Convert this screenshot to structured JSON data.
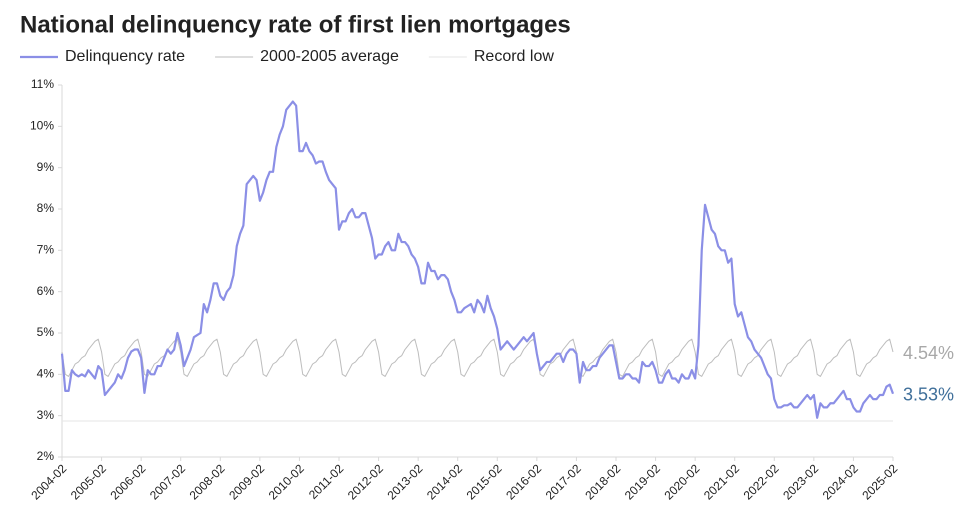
{
  "chart_data": {
    "type": "line",
    "title": "National delinquency rate of first lien mortgages",
    "x": [
      "2004-02",
      null,
      null,
      null,
      null,
      null,
      null,
      null,
      null,
      null,
      null,
      null,
      "2005-02",
      null,
      null,
      null,
      null,
      null,
      null,
      null,
      null,
      null,
      null,
      null,
      "2006-02",
      null,
      null,
      null,
      null,
      null,
      null,
      null,
      null,
      null,
      null,
      null,
      "2007-02",
      null,
      null,
      null,
      null,
      null,
      null,
      null,
      null,
      null,
      null,
      null,
      "2008-02",
      null,
      null,
      null,
      null,
      null,
      null,
      null,
      null,
      null,
      null,
      null,
      "2009-02",
      null,
      null,
      null,
      null,
      null,
      null,
      null,
      null,
      null,
      null,
      null,
      "2010-02",
      null,
      null,
      null,
      null,
      null,
      null,
      null,
      null,
      null,
      null,
      null,
      "2011-02",
      null,
      null,
      null,
      null,
      null,
      null,
      null,
      null,
      null,
      null,
      null,
      "2012-02",
      null,
      null,
      null,
      null,
      null,
      null,
      null,
      null,
      null,
      null,
      null,
      "2013-02",
      null,
      null,
      null,
      null,
      null,
      null,
      null,
      null,
      null,
      null,
      null,
      "2014-02",
      null,
      null,
      null,
      null,
      null,
      null,
      null,
      null,
      null,
      null,
      null,
      "2015-02",
      null,
      null,
      null,
      null,
      null,
      null,
      null,
      null,
      null,
      null,
      null,
      "2016-02",
      null,
      null,
      null,
      null,
      null,
      null,
      null,
      null,
      null,
      null,
      null,
      "2017-02",
      null,
      null,
      null,
      null,
      null,
      null,
      null,
      null,
      null,
      null,
      null,
      "2018-02",
      null,
      null,
      null,
      null,
      null,
      null,
      null,
      null,
      null,
      null,
      null,
      "2019-02",
      null,
      null,
      null,
      null,
      null,
      null,
      null,
      null,
      null,
      null,
      null,
      "2020-02",
      null,
      null,
      null,
      null,
      null,
      null,
      null,
      null,
      null,
      null,
      null,
      "2021-02",
      null,
      null,
      null,
      null,
      null,
      null,
      null,
      null,
      null,
      null,
      null,
      "2022-02",
      null,
      null,
      null,
      null,
      null,
      null,
      null,
      null,
      null,
      null,
      null,
      "2023-02",
      null,
      null,
      null,
      null,
      null,
      null,
      null,
      null,
      null,
      null,
      null,
      "2024-02",
      null,
      null,
      null,
      null,
      null,
      null,
      null,
      null,
      null,
      null,
      null,
      "2025-02"
    ],
    "series": [
      {
        "name": "Delinquency rate",
        "color": "#8b8fe6",
        "width": 2.2,
        "end_label": "3.53%",
        "end_label_color": "#3f6f9a",
        "values": [
          4.5,
          3.6,
          3.6,
          4.1,
          4.0,
          3.95,
          4.0,
          3.95,
          4.1,
          4.0,
          3.9,
          4.2,
          4.1,
          3.5,
          3.6,
          3.7,
          3.8,
          4.0,
          3.9,
          4.1,
          4.4,
          4.55,
          4.6,
          4.6,
          4.4,
          3.55,
          4.1,
          4.0,
          4.0,
          4.2,
          4.2,
          4.4,
          4.6,
          4.5,
          4.6,
          5.0,
          4.7,
          4.2,
          4.4,
          4.6,
          4.9,
          4.95,
          5.0,
          5.7,
          5.5,
          5.8,
          6.2,
          6.2,
          5.9,
          5.8,
          6.0,
          6.1,
          6.4,
          7.1,
          7.4,
          7.6,
          8.6,
          8.7,
          8.8,
          8.7,
          8.2,
          8.4,
          8.7,
          8.9,
          8.9,
          9.5,
          9.8,
          10.0,
          10.4,
          10.5,
          10.6,
          10.5,
          9.4,
          9.4,
          9.6,
          9.4,
          9.3,
          9.1,
          9.15,
          9.15,
          8.9,
          8.7,
          8.6,
          8.5,
          7.5,
          7.7,
          7.7,
          7.9,
          8.0,
          7.8,
          7.8,
          7.9,
          7.9,
          7.6,
          7.3,
          6.8,
          6.9,
          6.9,
          7.1,
          7.2,
          7.0,
          7.0,
          7.4,
          7.2,
          7.2,
          7.1,
          6.9,
          6.8,
          6.6,
          6.2,
          6.2,
          6.7,
          6.5,
          6.5,
          6.3,
          6.4,
          6.4,
          6.3,
          6.0,
          5.8,
          5.5,
          5.5,
          5.6,
          5.65,
          5.7,
          5.5,
          5.8,
          5.7,
          5.5,
          5.9,
          5.6,
          5.4,
          5.1,
          4.6,
          4.7,
          4.8,
          4.7,
          4.6,
          4.7,
          4.8,
          4.9,
          4.8,
          4.9,
          5.0,
          4.5,
          4.1,
          4.2,
          4.3,
          4.3,
          4.4,
          4.5,
          4.5,
          4.3,
          4.5,
          4.6,
          4.6,
          4.5,
          3.8,
          4.3,
          4.1,
          4.1,
          4.2,
          4.2,
          4.4,
          4.5,
          4.6,
          4.7,
          4.7,
          4.3,
          3.9,
          3.9,
          4.0,
          4.0,
          3.9,
          3.9,
          3.8,
          4.3,
          4.2,
          4.2,
          4.3,
          4.1,
          3.8,
          3.8,
          4.0,
          4.1,
          3.9,
          3.9,
          3.8,
          4.0,
          3.9,
          3.9,
          4.1,
          3.9,
          4.7,
          7.0,
          8.1,
          7.8,
          7.5,
          7.4,
          7.1,
          7.0,
          7.0,
          6.7,
          6.8,
          5.7,
          5.4,
          5.5,
          5.2,
          4.9,
          4.8,
          4.6,
          4.5,
          4.4,
          4.2,
          4.0,
          3.9,
          3.4,
          3.2,
          3.2,
          3.25,
          3.25,
          3.3,
          3.2,
          3.2,
          3.3,
          3.4,
          3.5,
          3.4,
          3.5,
          2.95,
          3.3,
          3.2,
          3.2,
          3.3,
          3.3,
          3.4,
          3.5,
          3.6,
          3.4,
          3.4,
          3.2,
          3.1,
          3.1,
          3.3,
          3.4,
          3.5,
          3.4,
          3.4,
          3.5,
          3.5,
          3.7,
          3.75,
          3.53
        ]
      },
      {
        "name": "2000-2005 average",
        "color": "#bdbdbd",
        "width": 1,
        "end_label": "4.54%",
        "end_label_color": "#a8a8a8",
        "values": [
          4.54,
          4.0,
          3.95,
          4.1,
          4.25,
          4.3,
          4.4,
          4.45,
          4.6,
          4.7,
          4.8,
          4.85,
          4.54,
          4.0,
          3.95,
          4.1,
          4.25,
          4.3,
          4.4,
          4.45,
          4.6,
          4.7,
          4.8,
          4.85,
          4.54,
          4.0,
          3.95,
          4.1,
          4.25,
          4.3,
          4.4,
          4.45,
          4.6,
          4.7,
          4.8,
          4.85,
          4.54,
          4.0,
          3.95,
          4.1,
          4.25,
          4.3,
          4.4,
          4.45,
          4.6,
          4.7,
          4.8,
          4.85,
          4.54,
          4.0,
          3.95,
          4.1,
          4.25,
          4.3,
          4.4,
          4.45,
          4.6,
          4.7,
          4.8,
          4.85,
          4.54,
          4.0,
          3.95,
          4.1,
          4.25,
          4.3,
          4.4,
          4.45,
          4.6,
          4.7,
          4.8,
          4.85,
          4.54,
          4.0,
          3.95,
          4.1,
          4.25,
          4.3,
          4.4,
          4.45,
          4.6,
          4.7,
          4.8,
          4.85,
          4.54,
          4.0,
          3.95,
          4.1,
          4.25,
          4.3,
          4.4,
          4.45,
          4.6,
          4.7,
          4.8,
          4.85,
          4.54,
          4.0,
          3.95,
          4.1,
          4.25,
          4.3,
          4.4,
          4.45,
          4.6,
          4.7,
          4.8,
          4.85,
          4.54,
          4.0,
          3.95,
          4.1,
          4.25,
          4.3,
          4.4,
          4.45,
          4.6,
          4.7,
          4.8,
          4.85,
          4.54,
          4.0,
          3.95,
          4.1,
          4.25,
          4.3,
          4.4,
          4.45,
          4.6,
          4.7,
          4.8,
          4.85,
          4.54,
          4.0,
          3.95,
          4.1,
          4.25,
          4.3,
          4.4,
          4.45,
          4.6,
          4.7,
          4.8,
          4.85,
          4.54,
          4.0,
          3.95,
          4.1,
          4.25,
          4.3,
          4.4,
          4.45,
          4.6,
          4.7,
          4.8,
          4.85,
          4.54,
          4.0,
          3.95,
          4.1,
          4.25,
          4.3,
          4.4,
          4.45,
          4.6,
          4.7,
          4.8,
          4.85,
          4.54,
          4.0,
          3.95,
          4.1,
          4.25,
          4.3,
          4.4,
          4.45,
          4.6,
          4.7,
          4.8,
          4.85,
          4.54,
          4.0,
          3.95,
          4.1,
          4.25,
          4.3,
          4.4,
          4.45,
          4.6,
          4.7,
          4.8,
          4.85,
          4.54,
          4.0,
          3.95,
          4.1,
          4.25,
          4.3,
          4.4,
          4.45,
          4.6,
          4.7,
          4.8,
          4.85,
          4.54,
          4.0,
          3.95,
          4.1,
          4.25,
          4.3,
          4.4,
          4.45,
          4.6,
          4.7,
          4.8,
          4.85,
          4.54,
          4.0,
          3.95,
          4.1,
          4.25,
          4.3,
          4.4,
          4.45,
          4.6,
          4.7,
          4.8,
          4.85,
          4.54,
          4.0,
          3.95,
          4.1,
          4.25,
          4.3,
          4.4,
          4.45,
          4.6,
          4.7,
          4.8,
          4.85,
          4.54,
          4.0,
          3.95,
          4.1,
          4.25,
          4.3,
          4.4,
          4.45,
          4.6,
          4.7,
          4.8,
          4.85,
          4.54
        ]
      }
    ],
    "reference_line": {
      "name": "Record low",
      "value": 2.87,
      "color": "#e6e6e6"
    },
    "ylim": [
      2,
      11
    ],
    "yticks": [
      {
        "value": 2,
        "label": "2%"
      },
      {
        "value": 3,
        "label": "3%"
      },
      {
        "value": 4,
        "label": "4%"
      },
      {
        "value": 5,
        "label": "5%"
      },
      {
        "value": 6,
        "label": "6%"
      },
      {
        "value": 7,
        "label": "7%"
      },
      {
        "value": 8,
        "label": "8%"
      },
      {
        "value": 9,
        "label": "9%"
      },
      {
        "value": 10,
        "label": "10%"
      },
      {
        "value": 11,
        "label": "11%"
      }
    ],
    "grid": false
  }
}
